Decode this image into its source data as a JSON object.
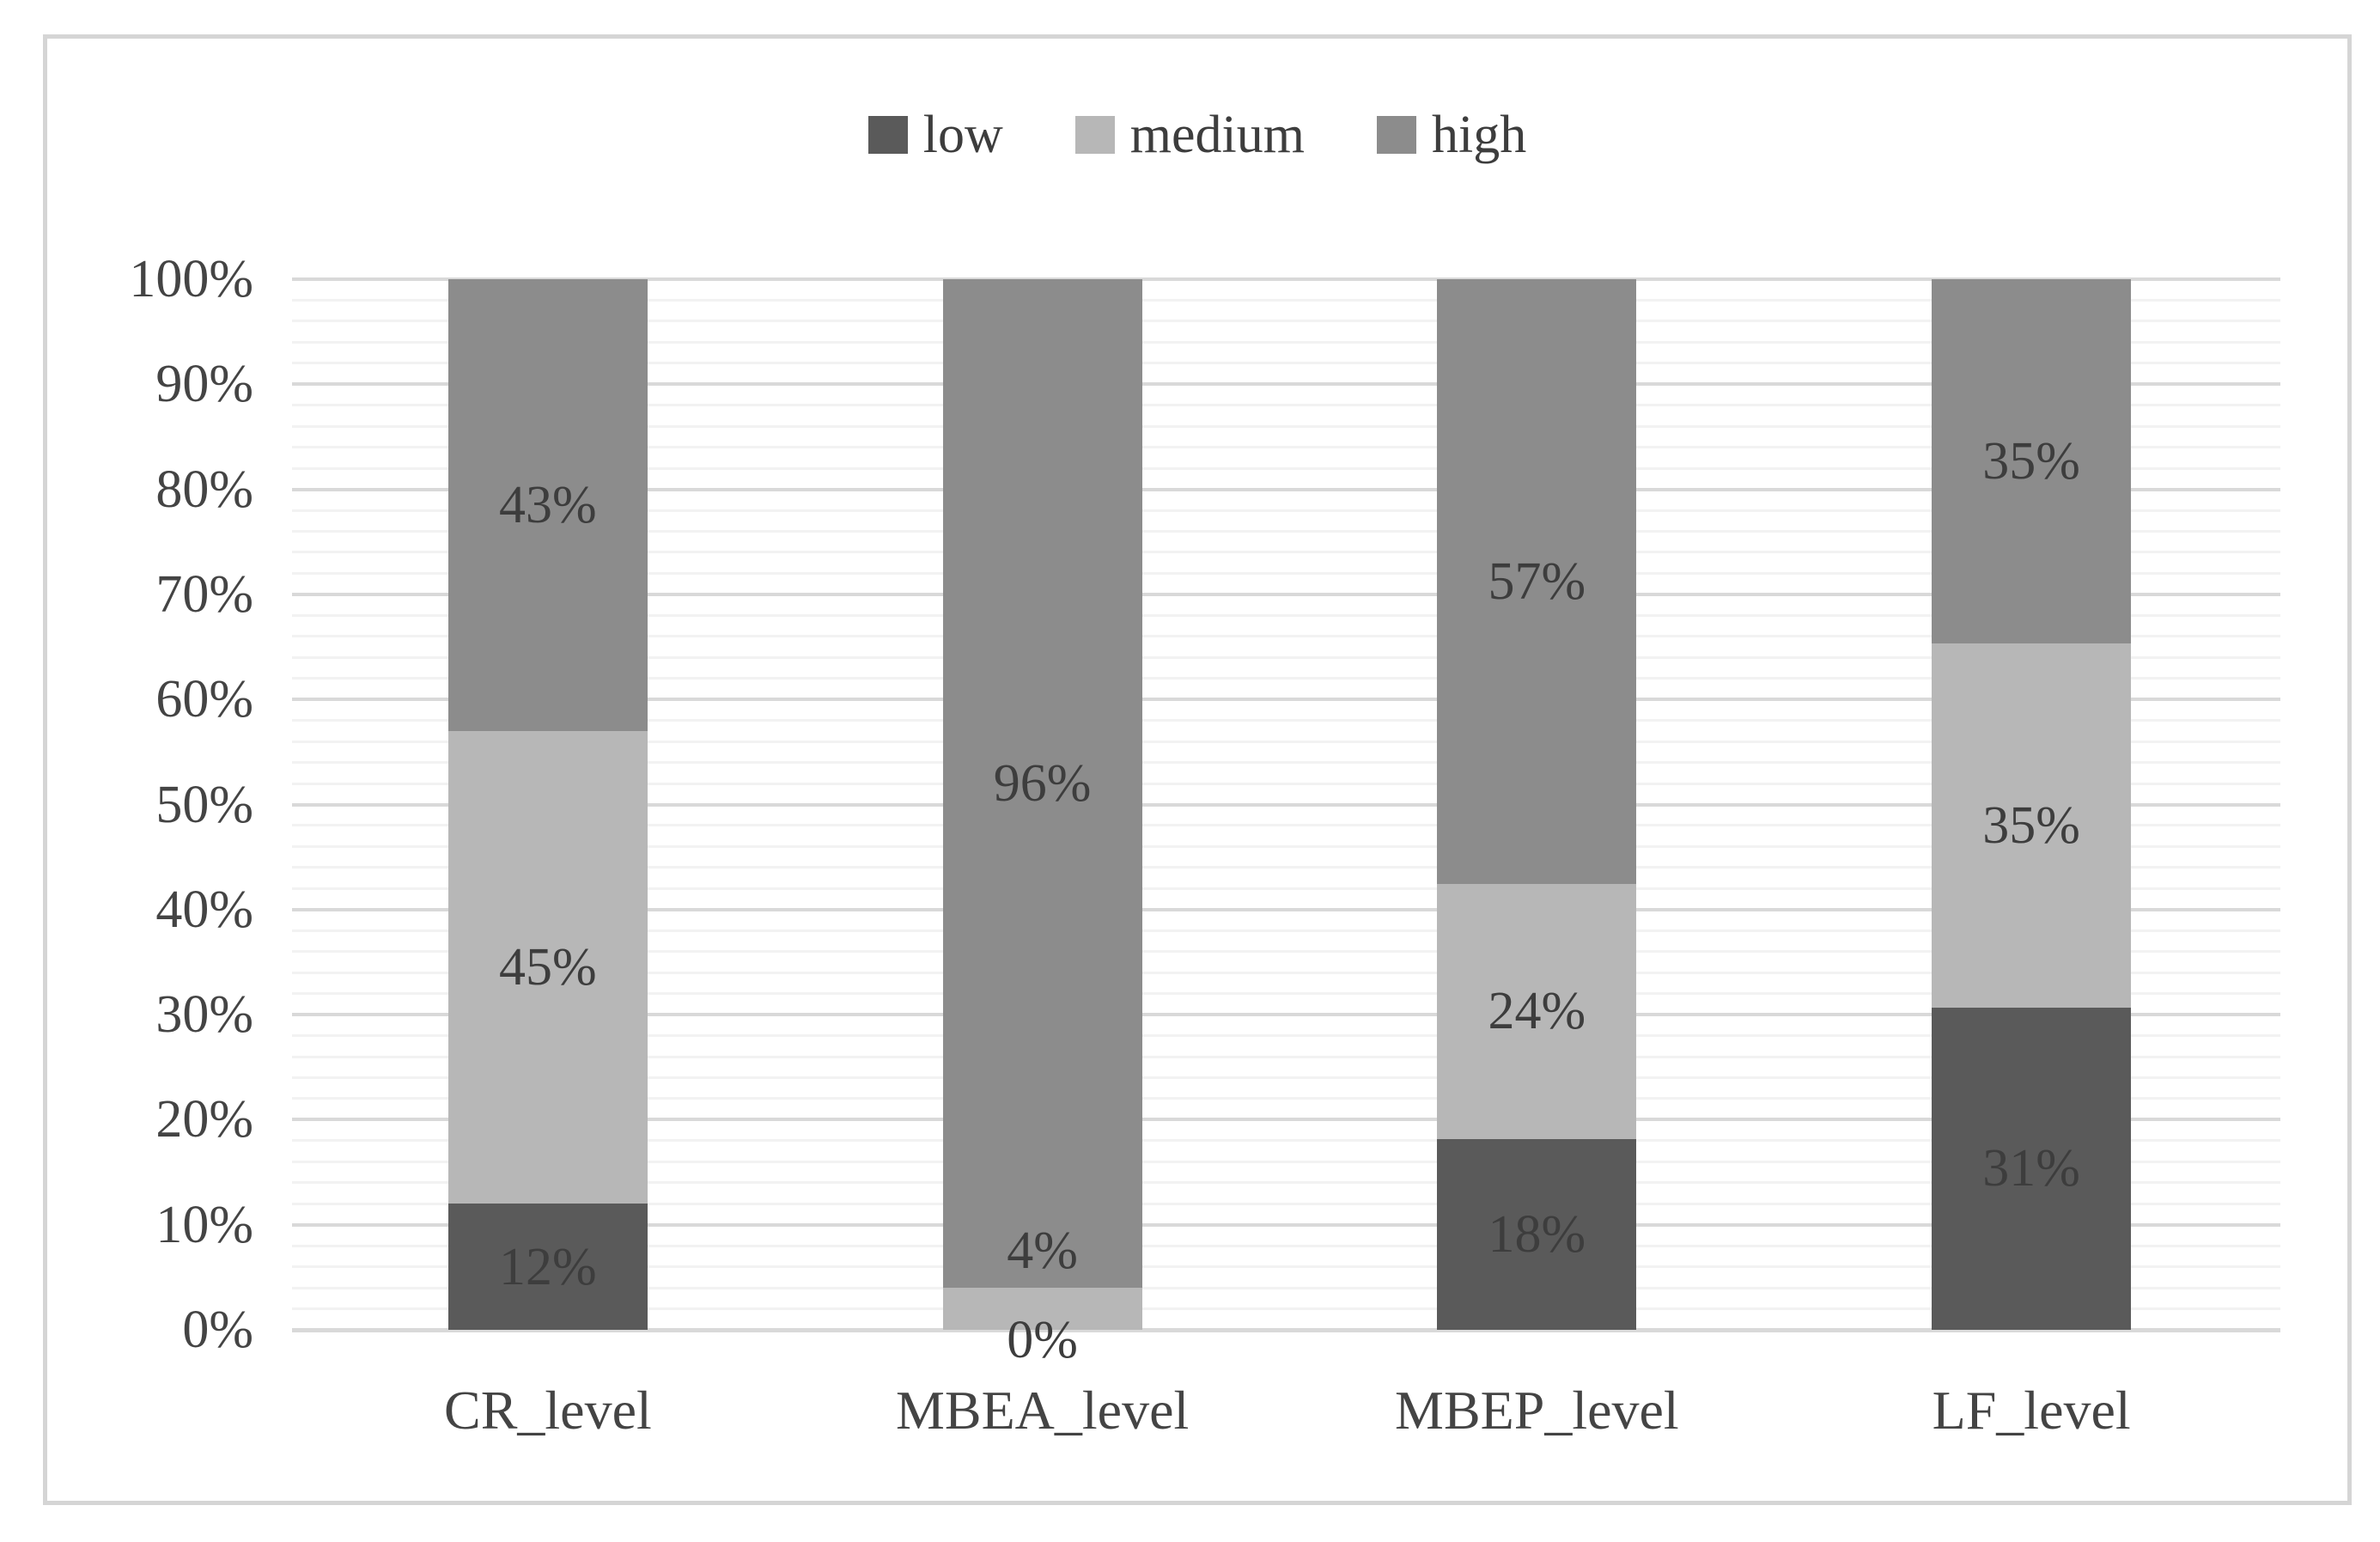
{
  "figure": {
    "background": "#ffffff",
    "frame_border_color": "#d5d5d5"
  },
  "chart_data": {
    "type": "bar",
    "subtype": "stacked-100-percent-column",
    "title": "",
    "xlabel": "",
    "ylabel": "",
    "categories": [
      "CR_level",
      "MBEA_level",
      "MBEP_level",
      "LF_level"
    ],
    "series": [
      {
        "name": "low",
        "color": "#5a5a5a",
        "values": [
          12,
          0,
          18,
          31
        ],
        "data_labels": [
          "12%",
          "0%",
          "18%",
          "31%"
        ],
        "label_offset_pct": [
          0,
          -1,
          0,
          0
        ]
      },
      {
        "name": "medium",
        "color": "#b7b7b7",
        "values": [
          45,
          4,
          24,
          35
        ],
        "data_labels": [
          "45%",
          "4%",
          "24%",
          "35%"
        ],
        "label_offset_pct": [
          0,
          5.5,
          0,
          0
        ]
      },
      {
        "name": "high",
        "color": "#8c8c8c",
        "values": [
          43,
          96,
          57,
          35
        ],
        "data_labels": [
          "43%",
          "96%",
          "57%",
          "35%"
        ],
        "label_offset_pct": [
          0,
          0,
          0,
          0
        ]
      }
    ],
    "y_axis": {
      "min": 0,
      "max": 100,
      "major_unit": 10,
      "minor_unit": 2,
      "tick_labels": [
        "0%",
        "10%",
        "20%",
        "30%",
        "40%",
        "50%",
        "60%",
        "70%",
        "80%",
        "90%",
        "100%"
      ]
    },
    "legend": {
      "position": "top",
      "entries": [
        "low",
        "medium",
        "high"
      ]
    },
    "gridlines": {
      "major": true,
      "minor": true,
      "major_color": "#d9d9d9",
      "minor_color": "#f2f2f2"
    },
    "text_color": "#3d3d3d",
    "axis_text_color": "#444444"
  }
}
